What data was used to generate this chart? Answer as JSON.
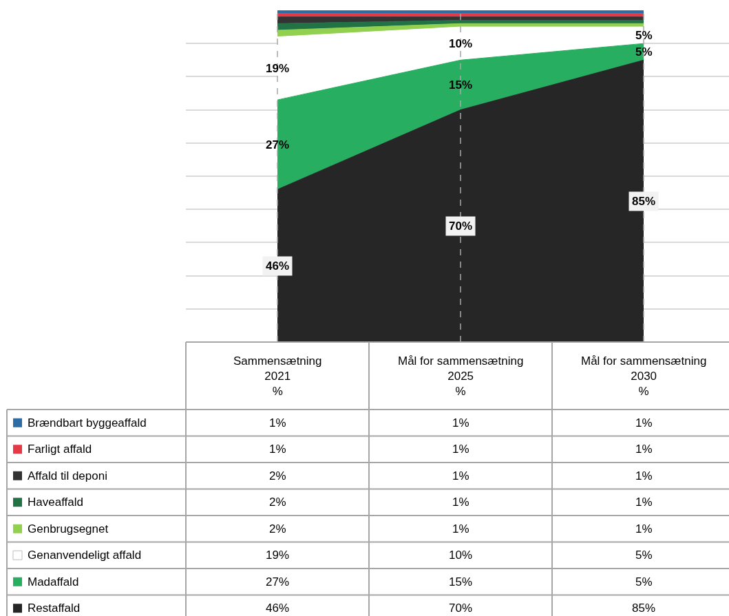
{
  "chart_data": {
    "type": "area",
    "stacked": true,
    "categories": [
      "Sammensætning\n2021\n%",
      "Mål for sammensætning\n2025\n%",
      "Mål for sammensætning\n2030\n%"
    ],
    "series": [
      {
        "name": "Restaffald",
        "color": "#262626",
        "values": [
          46,
          70,
          85
        ],
        "value_labels": [
          "46%",
          "70%",
          "85%"
        ]
      },
      {
        "name": "Madaffald",
        "color": "#27ae60",
        "values": [
          27,
          15,
          5
        ],
        "value_labels": [
          "27%",
          "15%",
          "5%"
        ]
      },
      {
        "name": "Genanvendeligt affald",
        "color": "#ffffff",
        "values": [
          19,
          10,
          5
        ],
        "value_labels": [
          "19%",
          "10%",
          "5%"
        ]
      },
      {
        "name": "Genbrugsegnet",
        "color": "#92d050",
        "values": [
          2,
          1,
          1
        ],
        "value_labels": [
          "2%",
          "1%",
          "1%"
        ]
      },
      {
        "name": "Haveaffald",
        "color": "#217346",
        "values": [
          2,
          1,
          1
        ],
        "value_labels": [
          "2%",
          "1%",
          "1%"
        ]
      },
      {
        "name": "Affald til deponi",
        "color": "#333333",
        "values": [
          2,
          1,
          1
        ],
        "value_labels": [
          "2%",
          "1%",
          "1%"
        ]
      },
      {
        "name": "Farligt affald",
        "color": "#e63946",
        "values": [
          1,
          1,
          1
        ],
        "value_labels": [
          "1%",
          "1%",
          "1%"
        ]
      },
      {
        "name": "Brændbart byggeaffald",
        "color": "#2e6da4",
        "values": [
          1,
          1,
          1
        ],
        "value_labels": [
          "1%",
          "1%",
          "1%"
        ]
      }
    ],
    "ylim": [
      0,
      100
    ],
    "tick_labels": false,
    "grid": true,
    "legend": "bottom left"
  }
}
